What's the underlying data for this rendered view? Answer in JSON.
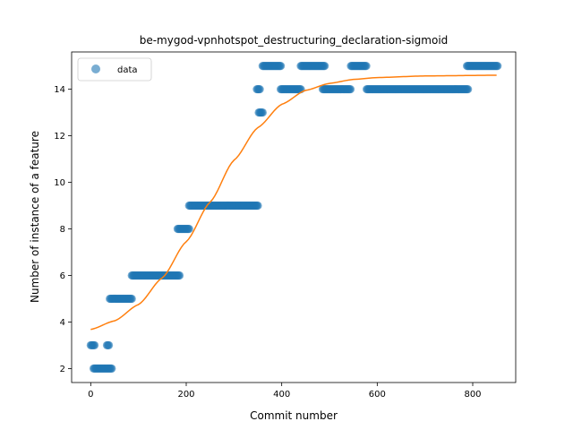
{
  "chart_data": {
    "type": "scatter",
    "title": "be-mygod-vpnhotspot_destructuring_declaration-sigmoid",
    "xlabel": "Commit number",
    "ylabel": "Number of instance of a feature",
    "xlim": [
      -40,
      890
    ],
    "ylim": [
      1.4,
      15.6
    ],
    "xticks": [
      0,
      200,
      400,
      600,
      800
    ],
    "yticks": [
      2,
      4,
      6,
      8,
      10,
      12,
      14
    ],
    "grid": false,
    "legend_position": "top-left",
    "colors": {
      "data": "#1f77b4",
      "fit": "#ff7f0e"
    },
    "series": [
      {
        "name": "data",
        "kind": "points",
        "segments": [
          {
            "x_start": 0,
            "x_end": 8,
            "y": 3
          },
          {
            "x_start": 6,
            "x_end": 44,
            "y": 2
          },
          {
            "x_start": 34,
            "x_end": 38,
            "y": 3
          },
          {
            "x_start": 40,
            "x_end": 86,
            "y": 5
          },
          {
            "x_start": 86,
            "x_end": 186,
            "y": 6
          },
          {
            "x_start": 182,
            "x_end": 206,
            "y": 8
          },
          {
            "x_start": 206,
            "x_end": 350,
            "y": 9
          },
          {
            "x_start": 348,
            "x_end": 354,
            "y": 14
          },
          {
            "x_start": 352,
            "x_end": 360,
            "y": 13
          },
          {
            "x_start": 360,
            "x_end": 398,
            "y": 15
          },
          {
            "x_start": 398,
            "x_end": 440,
            "y": 14
          },
          {
            "x_start": 440,
            "x_end": 490,
            "y": 15
          },
          {
            "x_start": 486,
            "x_end": 545,
            "y": 14
          },
          {
            "x_start": 545,
            "x_end": 578,
            "y": 15
          },
          {
            "x_start": 578,
            "x_end": 790,
            "y": 14
          },
          {
            "x_start": 788,
            "x_end": 852,
            "y": 15
          }
        ]
      },
      {
        "kind": "fitted-curve",
        "curve": "sigmoid",
        "x_range": [
          0,
          850
        ],
        "samples": [
          [
            0,
            3.68
          ],
          [
            50,
            4.05
          ],
          [
            100,
            4.75
          ],
          [
            150,
            5.9
          ],
          [
            200,
            7.45
          ],
          [
            250,
            9.15
          ],
          [
            300,
            10.95
          ],
          [
            350,
            12.35
          ],
          [
            400,
            13.35
          ],
          [
            450,
            13.95
          ],
          [
            500,
            14.25
          ],
          [
            550,
            14.42
          ],
          [
            600,
            14.5
          ],
          [
            700,
            14.57
          ],
          [
            850,
            14.6
          ]
        ]
      }
    ],
    "legend": [
      {
        "label": "data",
        "marker": "circle"
      }
    ]
  }
}
